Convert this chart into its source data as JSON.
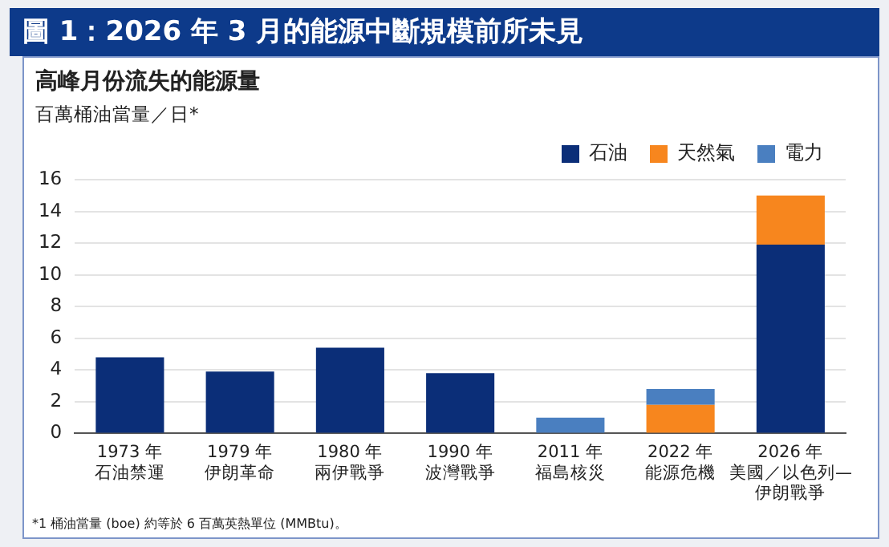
{
  "chart_data": {
    "type": "bar",
    "title": "圖 1：2026 年 3 月的能源中斷規模前所未見",
    "subtitle": "高峰月份流失的能源量",
    "ylabel": "百萬桶油當量／日*",
    "categories": [
      "1973 年石油禁運",
      "1979 年伊朗革命",
      "1980 年兩伊戰爭",
      "1990 年波灣戰爭",
      "2011 年福島核災",
      "2022 年能源危機",
      "2026 年美國／以色列—伊朗戰爭"
    ],
    "series": [
      {
        "name": "石油",
        "color": "#0b2e78",
        "values": [
          4.8,
          3.9,
          5.4,
          3.8,
          null,
          null,
          11.9
        ]
      },
      {
        "name": "天然氣",
        "color": "#f7861e",
        "values": [
          null,
          null,
          null,
          null,
          null,
          1.8,
          3.1
        ]
      },
      {
        "name": "電力",
        "color": "#4a7fc0",
        "values": [
          null,
          null,
          null,
          null,
          1.0,
          1.0,
          null
        ]
      }
    ],
    "stacked": true,
    "ylim": [
      0,
      16
    ],
    "yticks": [
      0,
      2,
      4,
      6,
      8,
      10,
      12,
      14,
      16
    ],
    "grid": "y",
    "legend": "top right",
    "annotations": [
      "*1 桶油當量 (boe) 約等於 6 百萬英熱單位 (MMBtu)。"
    ]
  }
}
